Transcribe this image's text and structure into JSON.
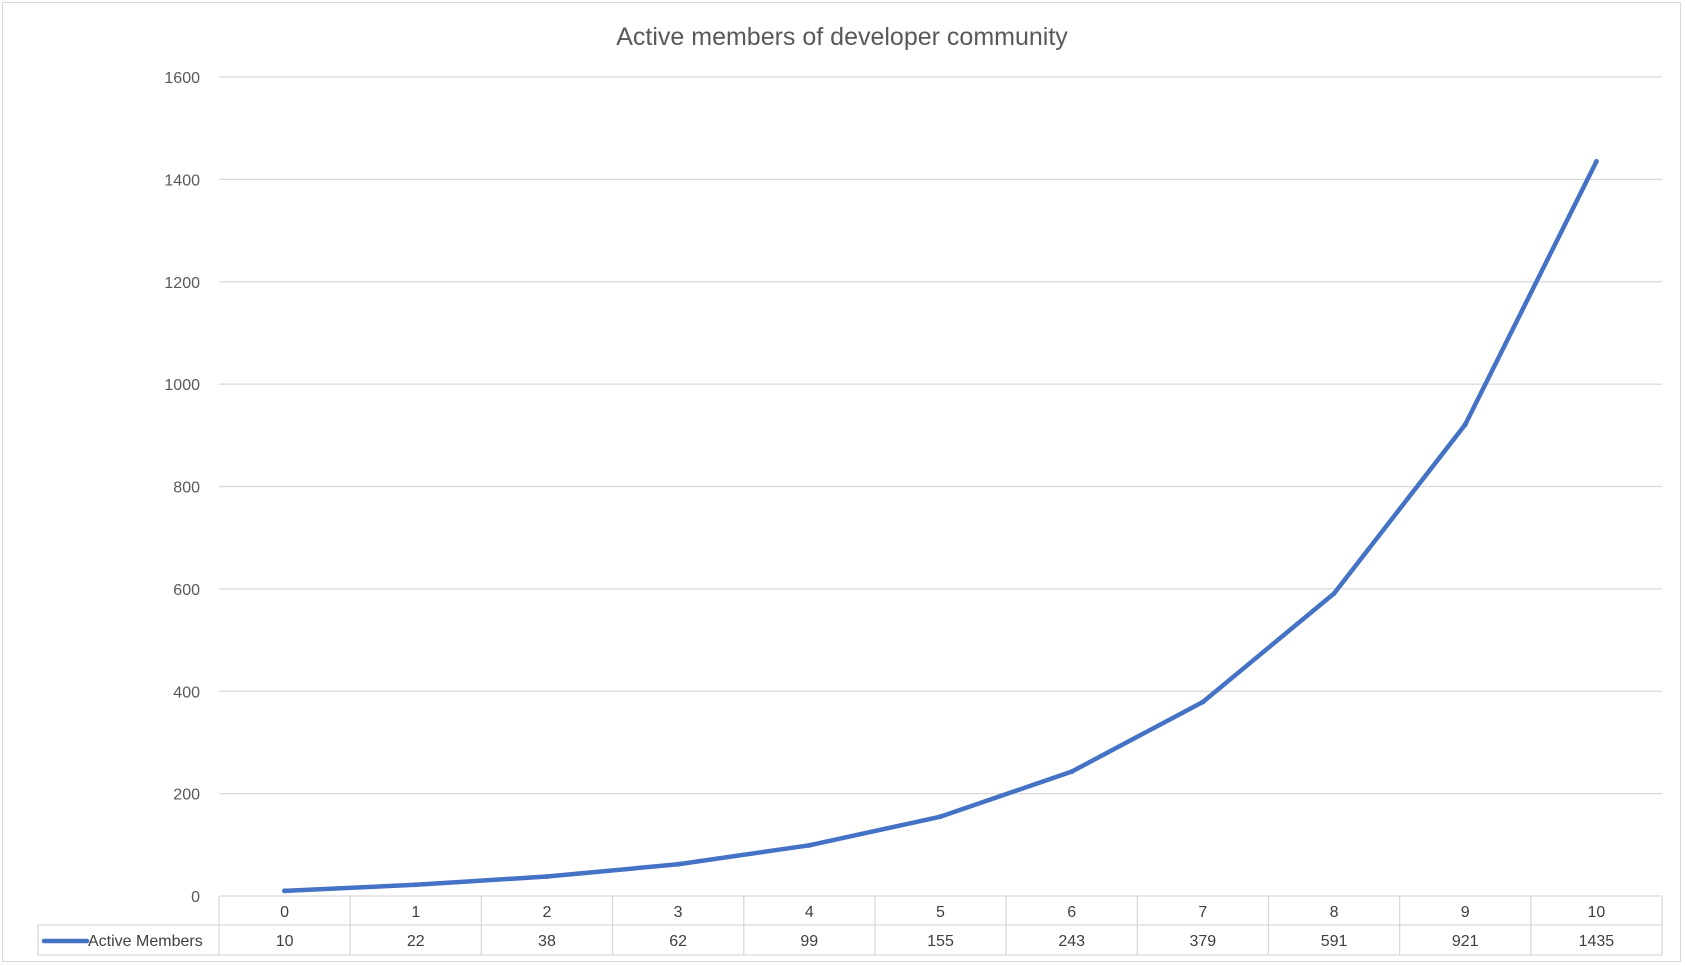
{
  "chart_data": {
    "type": "line",
    "title": "Active members of developer community",
    "xlabel": "",
    "ylabel": "",
    "categories": [
      "0",
      "1",
      "2",
      "3",
      "4",
      "5",
      "6",
      "7",
      "8",
      "9",
      "10"
    ],
    "series": [
      {
        "name": "Active Members",
        "values": [
          10,
          22,
          38,
          62,
          99,
          155,
          243,
          379,
          591,
          921,
          1435
        ],
        "color": "#4472c4"
      }
    ],
    "ylim": [
      0,
      1600
    ],
    "y_ticks": [
      "0",
      "200",
      "400",
      "600",
      "800",
      "1000",
      "1200",
      "1400",
      "1600"
    ],
    "grid": true,
    "legend": "data-table-bottom",
    "data_table": true,
    "colors": {
      "line": "#4472c4",
      "grid": "#d9d9d9",
      "text": "#595959"
    }
  }
}
